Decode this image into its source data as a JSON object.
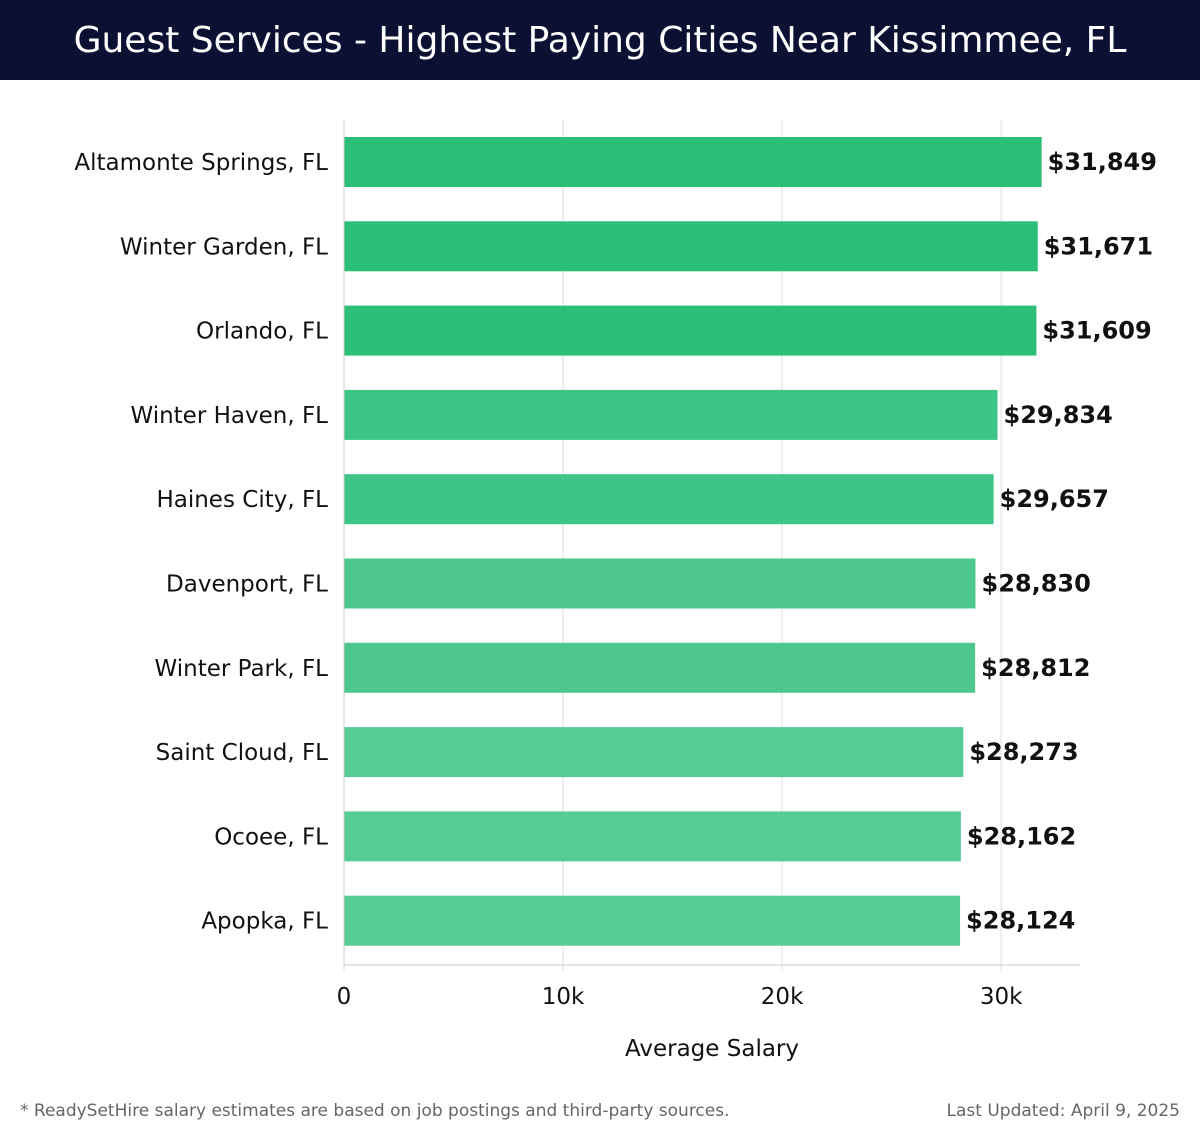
{
  "header": {
    "title": "Guest Services - Highest Paying Cities Near Kissimmee, FL"
  },
  "footer": {
    "note": "* ReadySetHire salary estimates are based on job postings and third-party sources.",
    "updated": "Last Updated: April 9, 2025"
  },
  "chart_data": {
    "type": "bar",
    "orientation": "horizontal",
    "title": "Guest Services - Highest Paying Cities Near Kissimmee, FL",
    "xlabel": "Average Salary",
    "ylabel": "",
    "xlim": [
      0,
      33600
    ],
    "xticks": [
      0,
      10000,
      20000,
      30000
    ],
    "xtick_labels": [
      "0",
      "10k",
      "20k",
      "30k"
    ],
    "grid": true,
    "categories": [
      "Altamonte Springs, FL",
      "Winter Garden, FL",
      "Orlando, FL",
      "Winter Haven, FL",
      "Haines City, FL",
      "Davenport, FL",
      "Winter Park, FL",
      "Saint Cloud, FL",
      "Ocoee, FL",
      "Apopka, FL"
    ],
    "values": [
      31849,
      31671,
      31609,
      29834,
      29657,
      28830,
      28812,
      28273,
      28162,
      28124
    ],
    "value_labels": [
      "$31,849",
      "$31,671",
      "$31,609",
      "$29,834",
      "$29,657",
      "$28,830",
      "$28,812",
      "$28,273",
      "$28,162",
      "$28,124"
    ],
    "bar_colors": [
      "#2bbf78",
      "#2bbf78",
      "#2bbf78",
      "#3cc585",
      "#3cc585",
      "#4ec78d",
      "#4ec78d",
      "#56cb94",
      "#56cb94",
      "#56cb94"
    ]
  }
}
